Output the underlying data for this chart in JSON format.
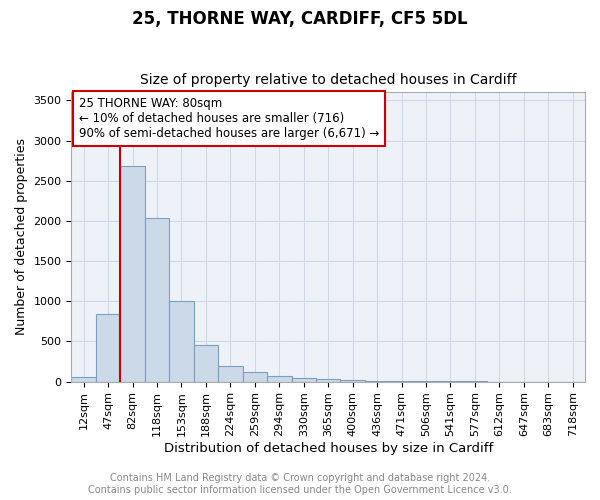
{
  "title1": "25, THORNE WAY, CARDIFF, CF5 5DL",
  "title2": "Size of property relative to detached houses in Cardiff",
  "xlabel": "Distribution of detached houses by size in Cardiff",
  "ylabel": "Number of detached properties",
  "footnote1": "Contains HM Land Registry data © Crown copyright and database right 2024.",
  "footnote2": "Contains public sector information licensed under the Open Government Licence v3.0.",
  "annotation_line1": "25 THORNE WAY: 80sqm",
  "annotation_line2": "← 10% of detached houses are smaller (716)",
  "annotation_line3": "90% of semi-detached houses are larger (6,671) →",
  "bar_color": "#ccd9e8",
  "bar_edge_color": "#7aa0c0",
  "property_line_color": "#cc0000",
  "annotation_box_color": "#ffffff",
  "annotation_box_edge_color": "#cc0000",
  "categories": [
    "12sqm",
    "47sqm",
    "82sqm",
    "118sqm",
    "153sqm",
    "188sqm",
    "224sqm",
    "259sqm",
    "294sqm",
    "330sqm",
    "365sqm",
    "400sqm",
    "436sqm",
    "471sqm",
    "506sqm",
    "541sqm",
    "577sqm",
    "612sqm",
    "647sqm",
    "683sqm",
    "718sqm"
  ],
  "values": [
    52,
    845,
    2680,
    2030,
    1000,
    450,
    200,
    125,
    75,
    50,
    30,
    20,
    12,
    8,
    5,
    3,
    2,
    1,
    1,
    0,
    0
  ],
  "ylim": [
    0,
    3600
  ],
  "title1_fontsize": 12,
  "title2_fontsize": 10,
  "xlabel_fontsize": 9.5,
  "ylabel_fontsize": 9,
  "tick_fontsize": 8,
  "annotation_fontsize": 8.5,
  "footnote_fontsize": 7,
  "grid_color": "#d0d8e8",
  "background_color": "#ffffff",
  "plot_bg_color": "#eef2f8"
}
